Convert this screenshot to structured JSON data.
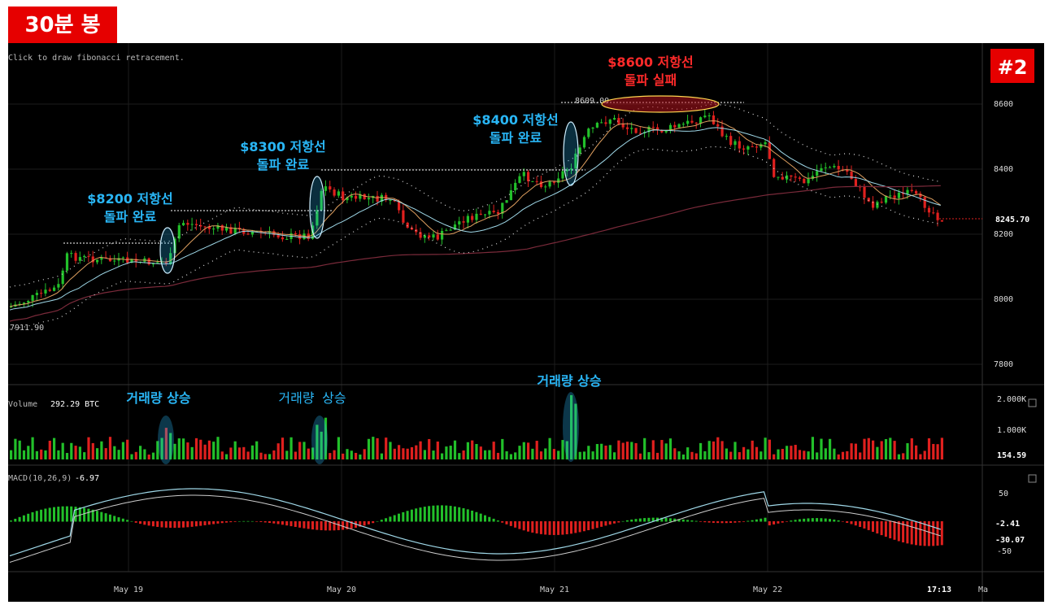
{
  "header": {
    "title": "30분 봉",
    "badge": "#2"
  },
  "hint": "Click to draw fibonacci retracement.",
  "colors": {
    "up": "#22c02a",
    "down": "#e0201e",
    "cyan": "#29b6f6",
    "red": "#ff2a2a",
    "grid": "#1c1c1c"
  },
  "price_panel": {
    "ticks": [
      "8600",
      "8400",
      "8200",
      "8000",
      "7800"
    ],
    "last_price": "8245.70",
    "low_label": "7911.90",
    "high_label": "8609.00"
  },
  "volume_panel": {
    "label": "Volume",
    "value": "292.29 BTC",
    "ticks": [
      "2.000K",
      "1.000K"
    ],
    "last": "154.59"
  },
  "macd_panel": {
    "label": "MACD(10,26,9)",
    "value": "-6.97",
    "ticks": [
      "50",
      "-50"
    ],
    "hist_last": "-2.41",
    "signal_last": "-30.07"
  },
  "time_axis": {
    "labels": [
      "May 19",
      "May 20",
      "May 21",
      "May 22"
    ],
    "current": "17:13",
    "partial": "Ma"
  },
  "annotations": {
    "r8200": [
      "$8200 저항선",
      "돌파 완료"
    ],
    "r8300": [
      "$8300 저항선",
      "돌파 완료"
    ],
    "r8400": [
      "$8400 저항선",
      "돌파 완료"
    ],
    "r8600": [
      "$8600 저항선",
      "돌파 실패"
    ],
    "vol1": "거래량 상승",
    "vol2": "거래량 상승",
    "vol3": "거래량 상승"
  },
  "chart_data": {
    "type": "line",
    "series": [],
    "price_range": [
      7760,
      8680
    ],
    "resistance_levels": [
      8200,
      8300,
      8400,
      8600
    ],
    "grid": true
  }
}
